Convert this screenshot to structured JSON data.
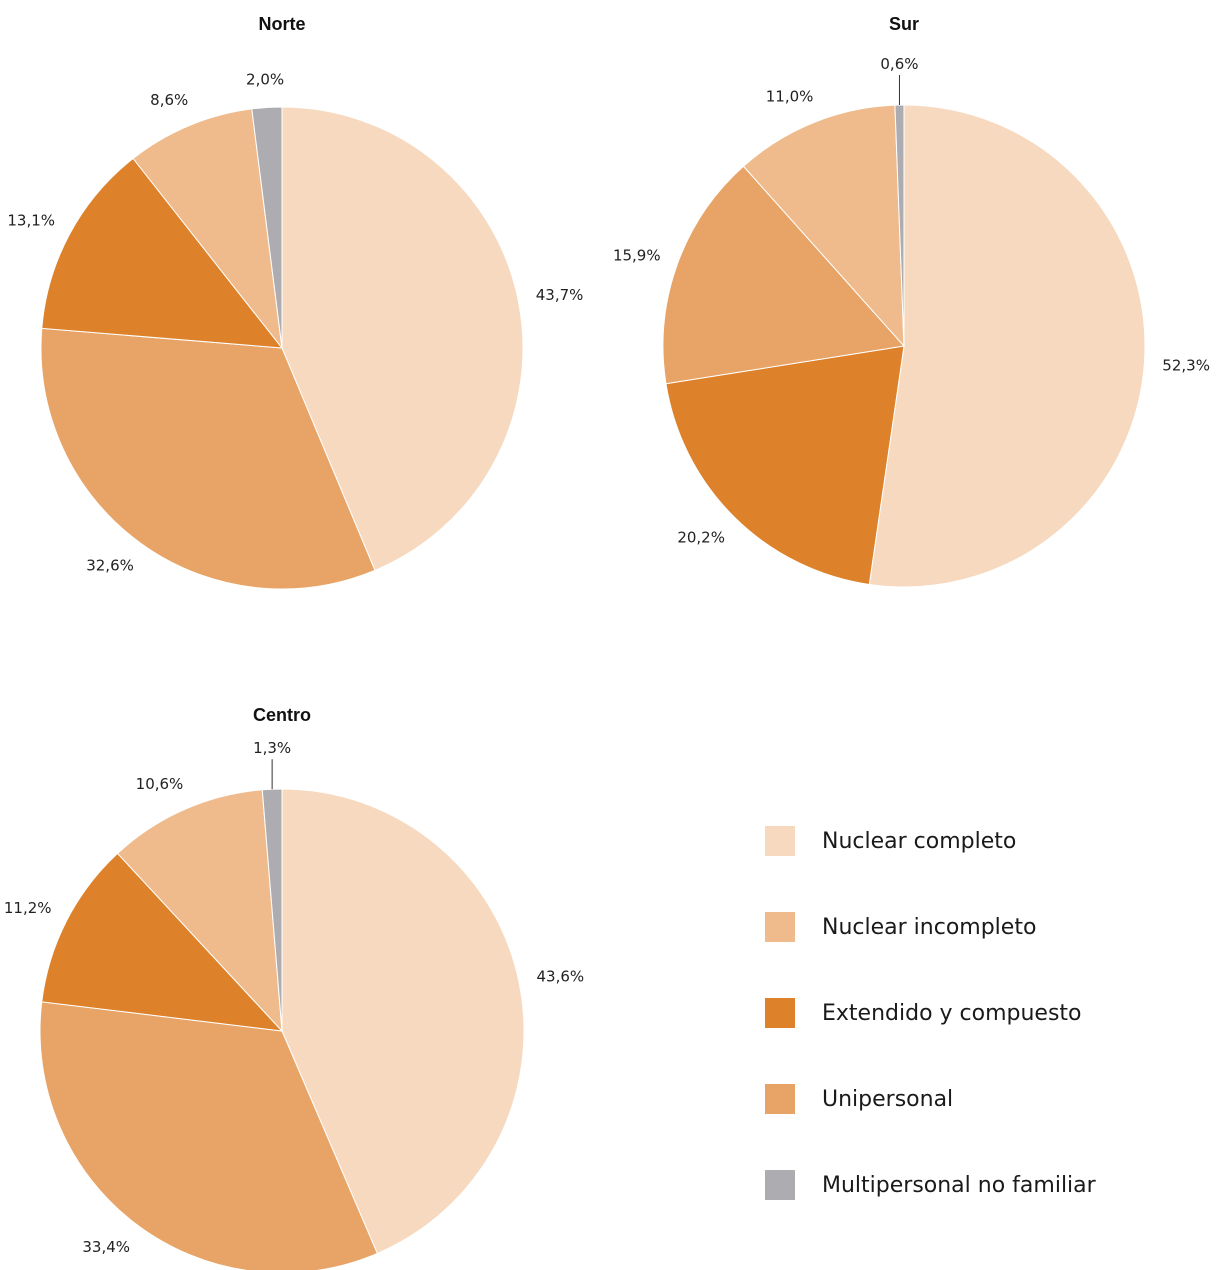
{
  "chart_data": [
    {
      "type": "pie",
      "title": "Norte",
      "slices": [
        {
          "category": "Nuclear completo",
          "value": 43.7,
          "label": "43,7%"
        },
        {
          "category": "Unipersonal",
          "value": 32.6,
          "label": "32,6%"
        },
        {
          "category": "Extendido y compuesto",
          "value": 13.1,
          "label": "13,1%"
        },
        {
          "category": "Nuclear incompleto",
          "value": 8.6,
          "label": "8,6%"
        },
        {
          "category": "Multipersonal no familiar",
          "value": 2.0,
          "label": "2,0%"
        }
      ]
    },
    {
      "type": "pie",
      "title": "Sur",
      "slices": [
        {
          "category": "Nuclear completo",
          "value": 52.3,
          "label": "52,3%"
        },
        {
          "category": "Extendido y compuesto",
          "value": 20.2,
          "label": "20,2%"
        },
        {
          "category": "Unipersonal",
          "value": 15.9,
          "label": "15,9%"
        },
        {
          "category": "Nuclear incompleto",
          "value": 11.0,
          "label": "11,0%"
        },
        {
          "category": "Multipersonal no familiar",
          "value": 0.6,
          "label": "0,6%"
        }
      ]
    },
    {
      "type": "pie",
      "title": "Centro",
      "slices": [
        {
          "category": "Nuclear completo",
          "value": 43.6,
          "label": "43,6%"
        },
        {
          "category": "Unipersonal",
          "value": 33.4,
          "label": "33,4%"
        },
        {
          "category": "Extendido y compuesto",
          "value": 11.2,
          "label": "11,2%"
        },
        {
          "category": "Nuclear incompleto",
          "value": 10.6,
          "label": "10,6%"
        },
        {
          "category": "Multipersonal no familiar",
          "value": 1.3,
          "label": "1,3%"
        }
      ]
    }
  ],
  "legend": {
    "placement": "bottom-right",
    "items": [
      {
        "label": "Nuclear completo",
        "color": "#f6d9bf"
      },
      {
        "label": "Nuclear incompleto",
        "color": "#efbb8c"
      },
      {
        "label": "Extendido y compuesto",
        "color": "#dd822a"
      },
      {
        "label": "Unipersonal",
        "color": "#e7a466"
      },
      {
        "label": "Multipersonal no familiar",
        "color": "#adadb1"
      }
    ]
  }
}
